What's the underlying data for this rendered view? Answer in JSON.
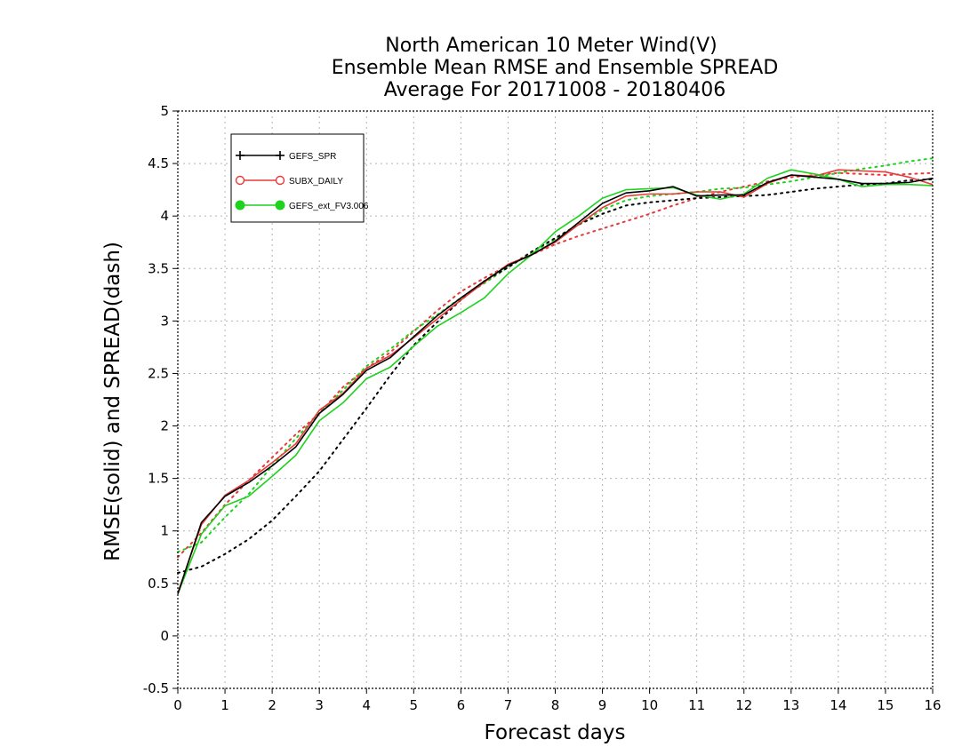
{
  "chart_data": {
    "type": "line",
    "title": [
      "North American 10 Meter Wind(V)",
      "Ensemble Mean RMSE and Ensemble SPREAD",
      "Average For 20171008 - 20180406"
    ],
    "xlabel": "Forecast days",
    "ylabel": "RMSE(solid) and SPREAD(dash)",
    "xlim": [
      0,
      16
    ],
    "ylim": [
      -0.5,
      5
    ],
    "xticks": [
      "0",
      "1",
      "2",
      "3",
      "4",
      "5",
      "6",
      "7",
      "8",
      "9",
      "10",
      "11",
      "12",
      "13",
      "14",
      "15",
      "16"
    ],
    "yticks": [
      "-0.5",
      "0",
      "0.5",
      "1",
      "1.5",
      "2",
      "2.5",
      "3",
      "3.5",
      "4",
      "4.5",
      "5"
    ],
    "grid": true,
    "legend_position": "top-left",
    "x": [
      0,
      0.5,
      1,
      1.5,
      2,
      2.5,
      3,
      3.5,
      4,
      4.5,
      5,
      5.5,
      6,
      6.5,
      7,
      7.5,
      8,
      8.5,
      9,
      9.5,
      10,
      10.5,
      11,
      11.5,
      12,
      12.5,
      13,
      13.5,
      14,
      14.5,
      15,
      15.5,
      16
    ],
    "series": [
      {
        "name": "GEFS_SPR",
        "color": "#000000",
        "marker": "plus",
        "rmse": [
          0.4,
          1.08,
          1.33,
          1.46,
          1.62,
          1.8,
          2.12,
          2.3,
          2.53,
          2.65,
          2.85,
          3.05,
          3.22,
          3.38,
          3.53,
          3.63,
          3.76,
          3.94,
          4.12,
          4.22,
          4.24,
          4.28,
          4.19,
          4.2,
          4.2,
          4.32,
          4.39,
          4.37,
          4.35,
          4.31,
          4.31,
          4.32,
          4.36
        ],
        "spread": [
          0.6,
          0.66,
          0.78,
          0.92,
          1.1,
          1.33,
          1.57,
          1.87,
          2.17,
          2.48,
          2.77,
          2.99,
          3.2,
          3.38,
          3.51,
          3.66,
          3.79,
          3.92,
          4.02,
          4.1,
          4.13,
          4.15,
          4.17,
          4.18,
          4.19,
          4.2,
          4.23,
          4.26,
          4.28,
          4.3,
          4.31,
          4.34,
          4.35
        ]
      },
      {
        "name": "SUBX_DAILY",
        "color": "#e83a3a",
        "marker": "open-circle",
        "rmse": [
          0.41,
          1.06,
          1.34,
          1.48,
          1.65,
          1.83,
          2.15,
          2.31,
          2.55,
          2.67,
          2.84,
          3.02,
          3.2,
          3.37,
          3.54,
          3.63,
          3.75,
          3.92,
          4.08,
          4.19,
          4.21,
          4.21,
          4.23,
          4.23,
          4.18,
          4.31,
          4.39,
          4.38,
          4.44,
          4.43,
          4.42,
          4.37,
          4.3
        ],
        "spread": [
          0.75,
          0.98,
          1.25,
          1.48,
          1.7,
          1.92,
          2.12,
          2.37,
          2.55,
          2.7,
          2.9,
          3.1,
          3.28,
          3.41,
          3.53,
          3.63,
          3.73,
          3.81,
          3.88,
          3.95,
          4.02,
          4.1,
          4.17,
          4.23,
          4.28,
          4.33,
          4.37,
          4.39,
          4.41,
          4.4,
          4.39,
          4.4,
          4.41
        ]
      },
      {
        "name": "GEFS_ext_FV3.006",
        "color": "#1ed21e",
        "marker": "filled-circle",
        "rmse": [
          0.4,
          0.97,
          1.24,
          1.33,
          1.52,
          1.72,
          2.05,
          2.22,
          2.45,
          2.56,
          2.76,
          2.95,
          3.08,
          3.22,
          3.45,
          3.63,
          3.85,
          4.0,
          4.17,
          4.25,
          4.26,
          4.27,
          4.2,
          4.16,
          4.21,
          4.36,
          4.44,
          4.4,
          4.35,
          4.28,
          4.3,
          4.3,
          4.29
        ],
        "spread": [
          0.8,
          0.89,
          1.13,
          1.35,
          1.62,
          1.88,
          2.12,
          2.34,
          2.57,
          2.73,
          2.91,
          3.06,
          3.22,
          3.36,
          3.51,
          3.65,
          3.78,
          3.92,
          4.06,
          4.15,
          4.19,
          4.21,
          4.23,
          4.26,
          4.27,
          4.3,
          4.33,
          4.37,
          4.41,
          4.45,
          4.48,
          4.52,
          4.55
        ]
      }
    ]
  }
}
